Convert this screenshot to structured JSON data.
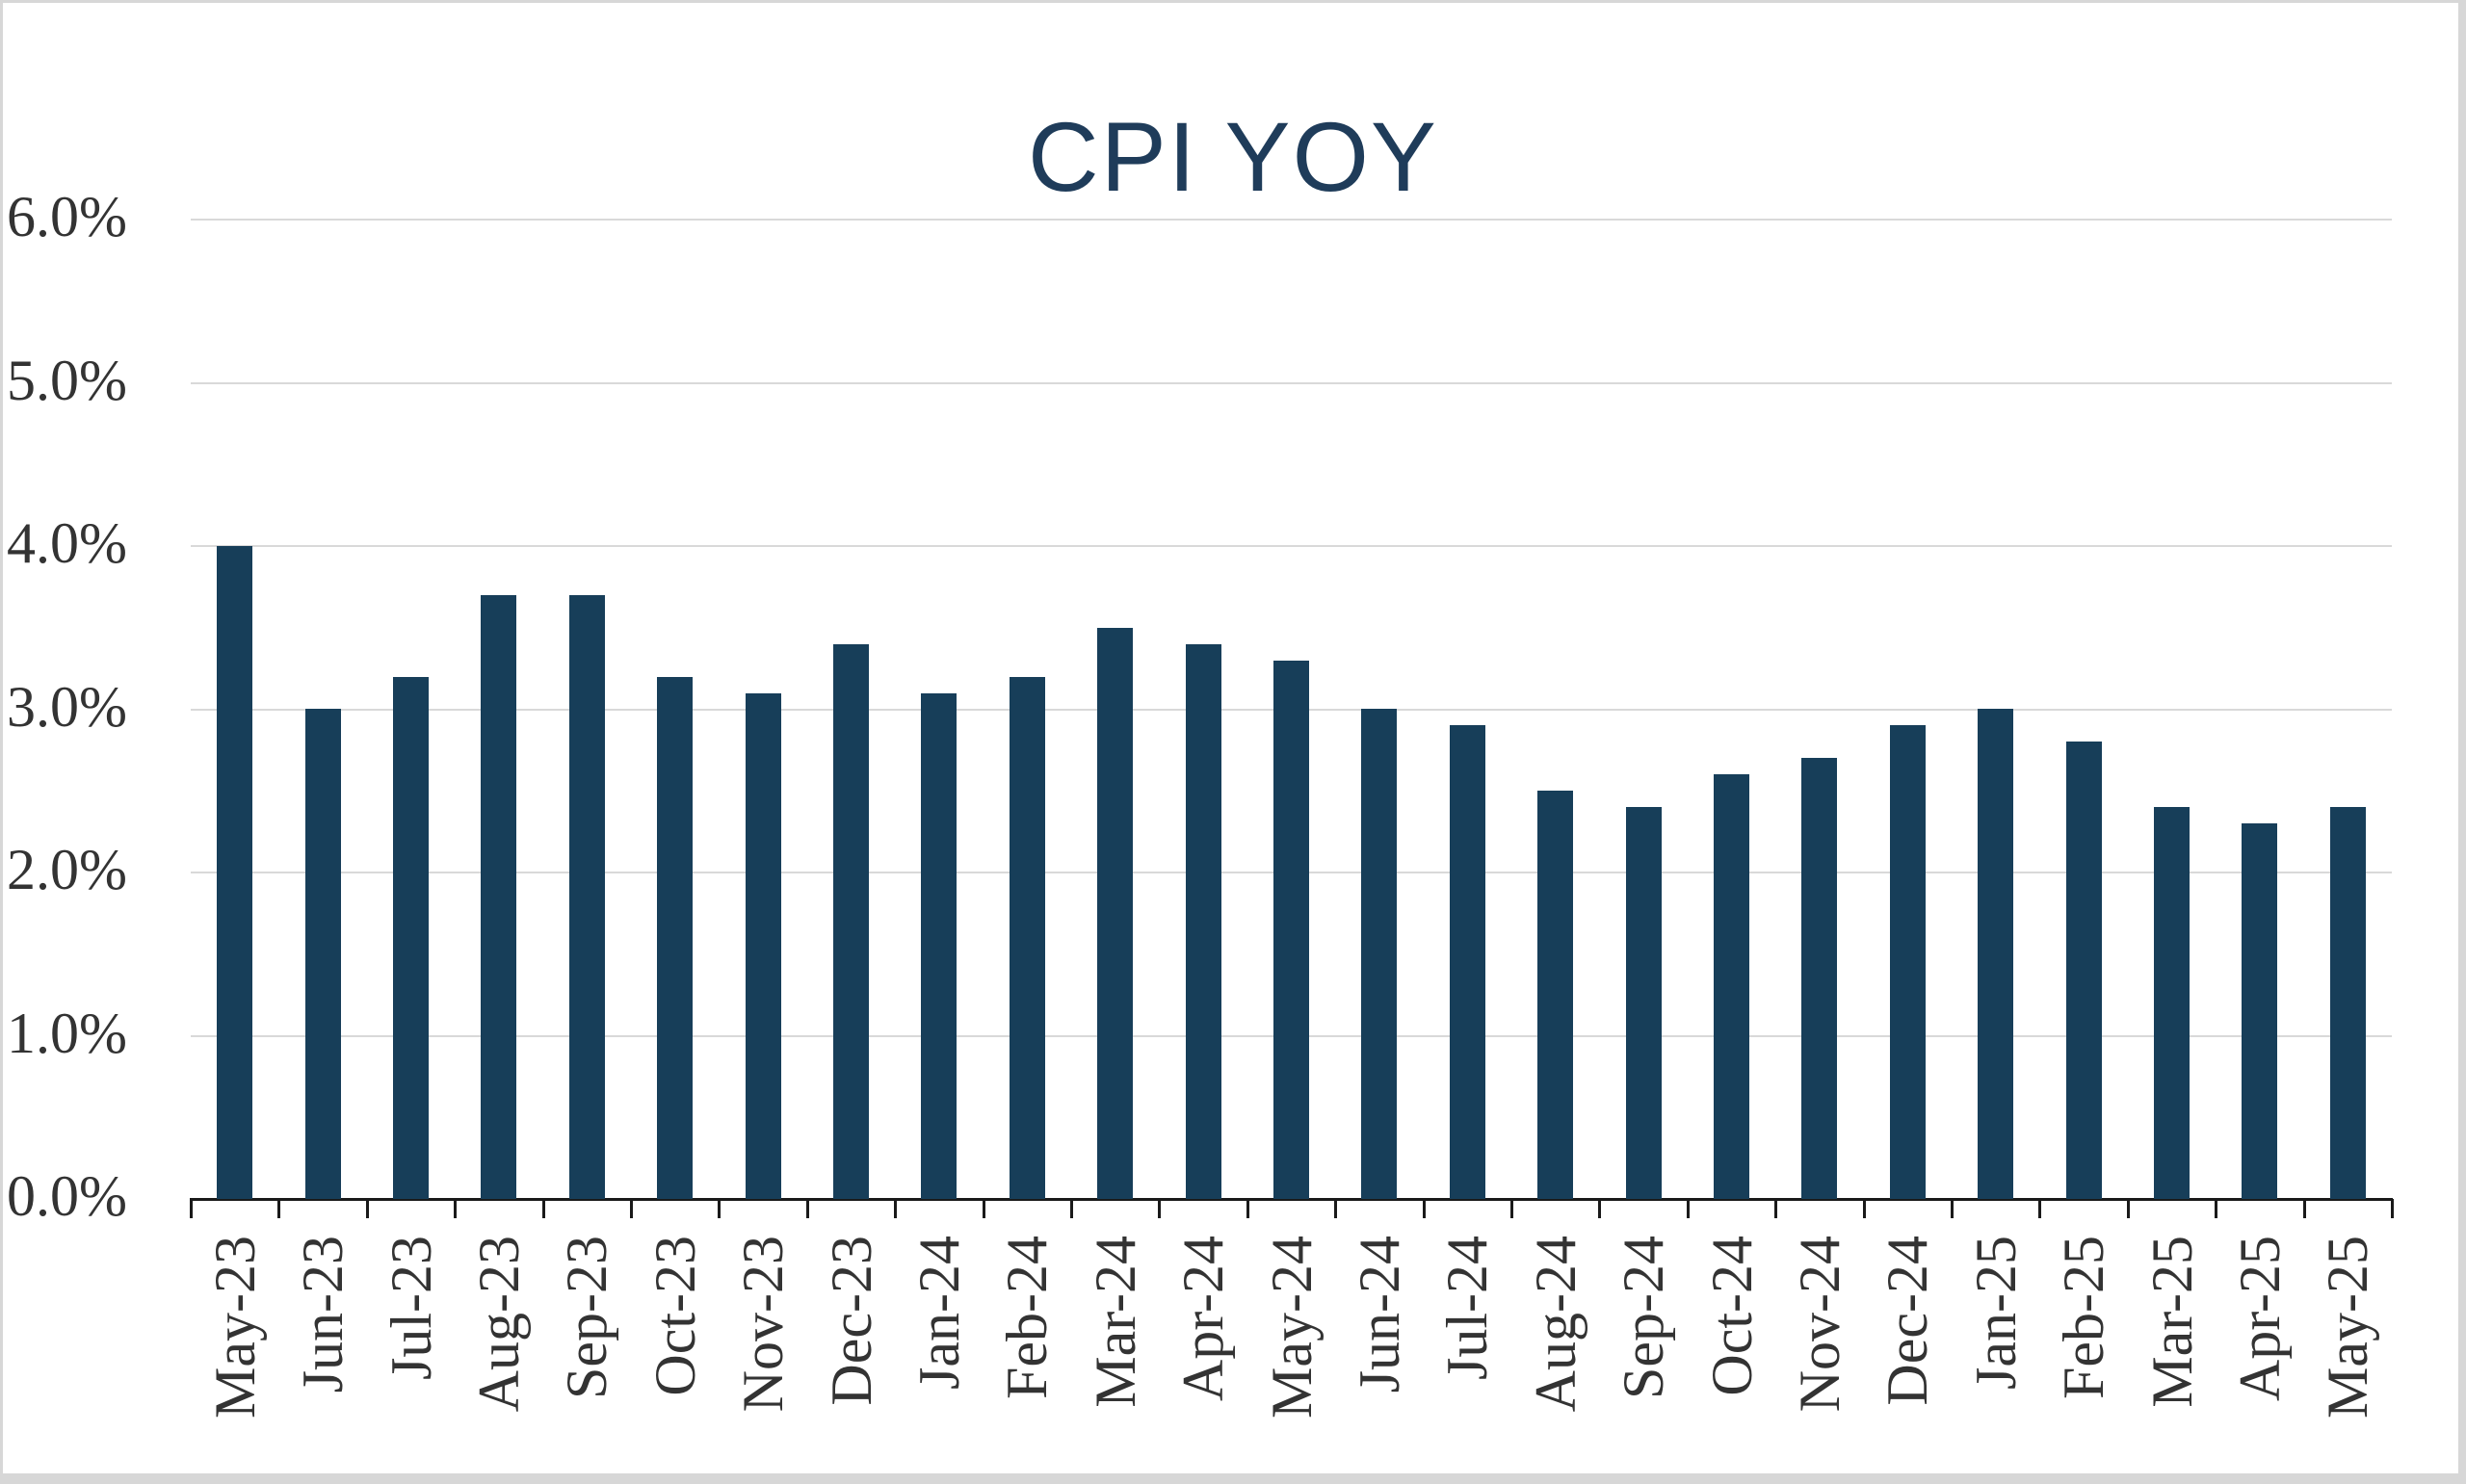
{
  "window": {
    "frame_color": "#D7D7D7",
    "background_color": "#FFFFFF"
  },
  "chart_data": {
    "type": "bar",
    "title": "CPI YOY",
    "categories": [
      "May-23",
      "Jun-23",
      "Jul-23",
      "Aug-23",
      "Sep-23",
      "Oct-23",
      "Nov-23",
      "Dec-23",
      "Jan-24",
      "Feb-24",
      "Mar-24",
      "Apr-24",
      "May-24",
      "Jun-24",
      "Jul-24",
      "Aug-24",
      "Sep-24",
      "Oct-24",
      "Nov-24",
      "Dec-24",
      "Jan-25",
      "Feb-25",
      "Mar-25",
      "Apr-25",
      "May-25"
    ],
    "values": [
      4.0,
      3.0,
      3.2,
      3.7,
      3.7,
      3.2,
      3.1,
      3.4,
      3.1,
      3.2,
      3.5,
      3.4,
      3.3,
      3.0,
      2.9,
      2.5,
      2.4,
      2.6,
      2.7,
      2.9,
      3.0,
      2.8,
      2.4,
      2.3,
      2.4
    ],
    "xlabel": "",
    "ylabel": "",
    "ylim": [
      0,
      6
    ],
    "y_tick_step": 1,
    "y_tick_labels": [
      "0.0%",
      "1.0%",
      "2.0%",
      "3.0%",
      "4.0%",
      "5.0%",
      "6.0%"
    ],
    "grid": true,
    "legend": false,
    "colors": {
      "bar": "#173E59",
      "title": "#1F3C5A",
      "gridline": "#D9D9D9",
      "axis_line": "#1A1A1A",
      "tick_label": "#333333"
    }
  }
}
